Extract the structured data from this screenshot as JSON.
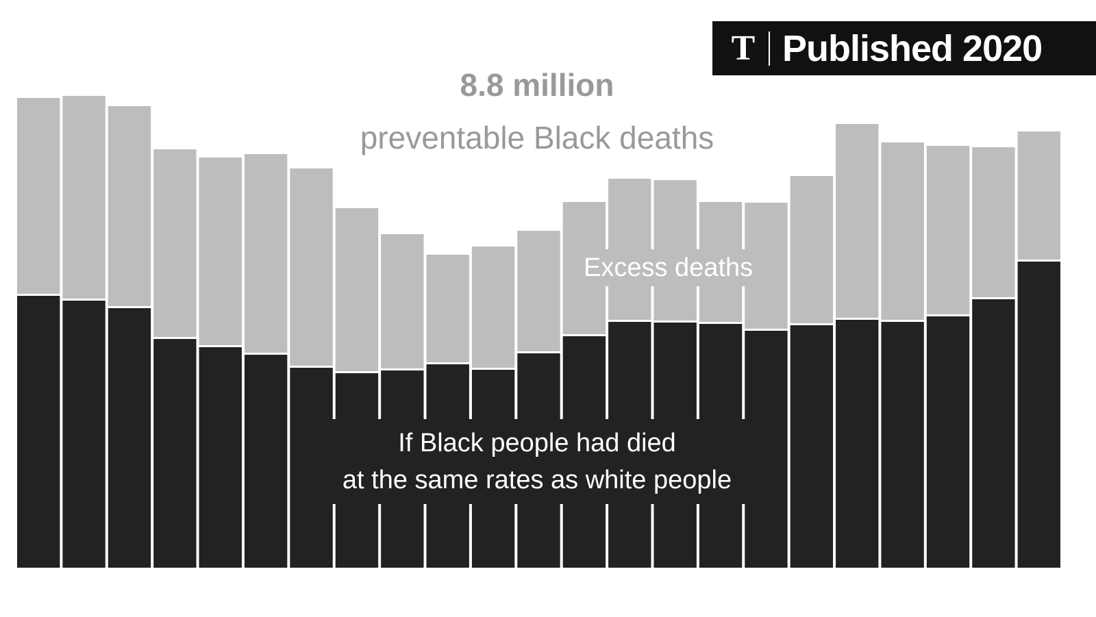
{
  "chart_data": {
    "type": "stacked-bar",
    "title": "8.8 million",
    "subtitle": "preventable Black deaths",
    "categories": [
      null,
      null,
      null,
      null,
      null,
      null,
      null,
      null,
      null,
      null,
      null,
      null,
      null,
      null,
      null,
      null,
      null,
      null,
      null,
      null,
      null,
      null,
      null
    ],
    "series": [
      {
        "name": "If Black people had died\nat the same rates as white people",
        "color": "#222222",
        "values": [
          397,
          390,
          379,
          334,
          322,
          311,
          292,
          284,
          288,
          297,
          289,
          313,
          338,
          359,
          358,
          356,
          346,
          354,
          362,
          359,
          367,
          392,
          447
        ]
      },
      {
        "name": "Excess deaths",
        "color": "#bdbdbd",
        "values": [
          289,
          299,
          295,
          277,
          277,
          293,
          291,
          241,
          199,
          160,
          180,
          179,
          196,
          209,
          208,
          178,
          187,
          218,
          286,
          262,
          249,
          222,
          190
        ]
      }
    ],
    "ylim": [
      0,
      700
    ]
  },
  "badge": {
    "logo": "T",
    "text": "Published 2020"
  }
}
